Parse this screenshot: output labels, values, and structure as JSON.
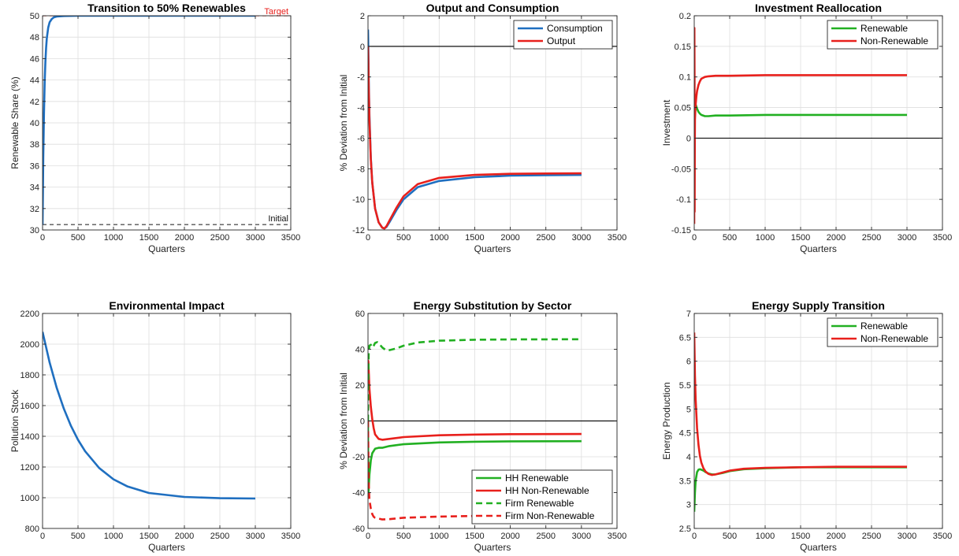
{
  "chart_data": [
    {
      "type": "line",
      "title": "Transition to 50% Renewables",
      "xlabel": "Quarters",
      "ylabel": "Renewable Share (%)",
      "xlim": [
        0,
        3500
      ],
      "ylim": [
        30,
        50
      ],
      "xticks": [
        0,
        500,
        1000,
        1500,
        2000,
        2500,
        3000,
        3500
      ],
      "yticks": [
        30,
        32,
        34,
        36,
        38,
        40,
        42,
        44,
        46,
        48,
        50
      ],
      "grid": true,
      "legend": "none",
      "series": [
        {
          "color": "#1f6fc0",
          "width": 2.6,
          "dash": "",
          "x": [
            0,
            5,
            10,
            15,
            20,
            30,
            40,
            50,
            60,
            80,
            100,
            130,
            160,
            200,
            300,
            500,
            1000,
            2000,
            3000
          ],
          "y": [
            30.5,
            33.8,
            36.8,
            39.0,
            40.9,
            43.8,
            45.7,
            47.0,
            47.9,
            48.9,
            49.4,
            49.7,
            49.85,
            49.93,
            49.98,
            50.0,
            50.0,
            50.0,
            50.0
          ]
        }
      ],
      "reference_lines": [
        {
          "label": "Target",
          "y": 50,
          "color": "#e8201c",
          "dash": "5,4"
        },
        {
          "label": "Initial",
          "y": 30.5,
          "color": "#555555",
          "dash": "5,4"
        }
      ]
    },
    {
      "type": "line",
      "title": "Output and Consumption",
      "xlabel": "Quarters",
      "ylabel": "% Deviation from Initial",
      "xlim": [
        0,
        3500
      ],
      "ylim": [
        -12,
        2
      ],
      "xticks": [
        0,
        500,
        1000,
        1500,
        2000,
        2500,
        3000,
        3500
      ],
      "yticks": [
        -12,
        -10,
        -8,
        -6,
        -4,
        -2,
        0,
        2
      ],
      "grid": true,
      "legend": "top-right",
      "zero_line": true,
      "series": [
        {
          "name": "Consumption",
          "color": "#1f6fc0",
          "width": 2.6,
          "dash": "",
          "x": [
            0,
            2,
            5,
            10,
            20,
            40,
            60,
            100,
            150,
            200,
            230,
            260,
            300,
            400,
            500,
            700,
            1000,
            1500,
            2000,
            2500,
            3000
          ],
          "y": [
            1.1,
            0.6,
            -0.5,
            -2.2,
            -4.5,
            -7.3,
            -8.9,
            -10.6,
            -11.5,
            -11.85,
            -11.9,
            -11.8,
            -11.5,
            -10.7,
            -10.0,
            -9.2,
            -8.8,
            -8.55,
            -8.45,
            -8.42,
            -8.4
          ]
        },
        {
          "name": "Output",
          "color": "#e8201c",
          "width": 2.6,
          "dash": "",
          "x": [
            0,
            5,
            10,
            20,
            40,
            60,
            100,
            150,
            200,
            230,
            260,
            300,
            400,
            500,
            700,
            1000,
            1500,
            2000,
            2500,
            3000
          ],
          "y": [
            0,
            -1.2,
            -2.6,
            -4.8,
            -7.4,
            -8.9,
            -10.6,
            -11.5,
            -11.85,
            -11.9,
            -11.75,
            -11.4,
            -10.55,
            -9.8,
            -9.0,
            -8.6,
            -8.4,
            -8.33,
            -8.31,
            -8.3
          ]
        }
      ]
    },
    {
      "type": "line",
      "title": "Investment Reallocation",
      "xlabel": "Quarters",
      "ylabel": "Investment",
      "xlim": [
        0,
        3500
      ],
      "ylim": [
        -0.15,
        0.2
      ],
      "xticks": [
        0,
        500,
        1000,
        1500,
        2000,
        2500,
        3000,
        3500
      ],
      "yticks": [
        -0.15,
        -0.1,
        -0.05,
        0,
        0.05,
        0.1,
        0.15,
        0.2
      ],
      "grid": true,
      "legend": "top-right",
      "zero_line": true,
      "series": [
        {
          "name": "Renewable",
          "color": "#22b022",
          "width": 2.6,
          "dash": "",
          "x": [
            0,
            2,
            5,
            10,
            20,
            40,
            60,
            80,
            100,
            150,
            200,
            300,
            500,
            1000,
            2000,
            3000
          ],
          "y": [
            0.0,
            0.03,
            0.06,
            0.06,
            0.055,
            0.048,
            0.043,
            0.04,
            0.038,
            0.036,
            0.036,
            0.037,
            0.037,
            0.038,
            0.038,
            0.038
          ]
        },
        {
          "name": "Non-Renewable",
          "color": "#e8201c",
          "width": 2.6,
          "dash": "",
          "x": [
            0,
            2,
            4,
            6,
            8,
            10,
            15,
            20,
            30,
            40,
            60,
            80,
            100,
            150,
            200,
            300,
            500,
            1000,
            2000,
            3000
          ],
          "y": [
            -0.14,
            0.18,
            0.1,
            -0.12,
            -0.02,
            0.03,
            0.045,
            0.055,
            0.068,
            0.077,
            0.087,
            0.093,
            0.097,
            0.1,
            0.101,
            0.102,
            0.102,
            0.103,
            0.103,
            0.103
          ]
        }
      ]
    },
    {
      "type": "line",
      "title": "Environmental Impact",
      "xlabel": "Quarters",
      "ylabel": "Pollution Stock",
      "xlim": [
        0,
        3500
      ],
      "ylim": [
        800,
        2200
      ],
      "xticks": [
        0,
        500,
        1000,
        1500,
        2000,
        2500,
        3000,
        3500
      ],
      "yticks": [
        800,
        1000,
        1200,
        1400,
        1600,
        1800,
        2000,
        2200
      ],
      "grid": true,
      "legend": "none",
      "series": [
        {
          "color": "#1f6fc0",
          "width": 2.6,
          "dash": "",
          "x": [
            0,
            100,
            200,
            300,
            400,
            500,
            600,
            800,
            1000,
            1200,
            1500,
            2000,
            2500,
            3000
          ],
          "y": [
            2080,
            1880,
            1715,
            1580,
            1468,
            1377,
            1303,
            1193,
            1120,
            1073,
            1031,
            1005,
            997,
            995
          ]
        }
      ]
    },
    {
      "type": "line",
      "title": "Energy Substitution by Sector",
      "xlabel": "Quarters",
      "ylabel": "% Deviation from Initial",
      "xlim": [
        0,
        3500
      ],
      "ylim": [
        -60,
        60
      ],
      "xticks": [
        0,
        500,
        1000,
        1500,
        2000,
        2500,
        3000,
        3500
      ],
      "yticks": [
        -60,
        -40,
        -20,
        0,
        20,
        40,
        60
      ],
      "grid": true,
      "legend": "bottom-right",
      "zero_line": true,
      "series": [
        {
          "name": "HH Renewable",
          "color": "#22b022",
          "width": 2.6,
          "dash": "",
          "x": [
            0,
            3,
            6,
            10,
            20,
            40,
            60,
            100,
            150,
            200,
            300,
            500,
            1000,
            1500,
            2000,
            3000
          ],
          "y": [
            0,
            -35,
            -42,
            -38,
            -30,
            -22,
            -18,
            -15.5,
            -15,
            -15,
            -14,
            -13,
            -12,
            -11.6,
            -11.4,
            -11.3
          ]
        },
        {
          "name": "HH Non-Renewable",
          "color": "#e8201c",
          "width": 2.6,
          "dash": "",
          "x": [
            0,
            5,
            10,
            20,
            40,
            60,
            80,
            100,
            150,
            200,
            300,
            500,
            1000,
            1500,
            2000,
            3000
          ],
          "y": [
            34,
            33,
            28,
            18,
            8,
            1,
            -4,
            -7.5,
            -10,
            -10.5,
            -10,
            -9,
            -8,
            -7.6,
            -7.4,
            -7.3
          ]
        },
        {
          "name": "Firm Renewable",
          "color": "#22b022",
          "width": 2.6,
          "dash": "8,5",
          "x": [
            0,
            5,
            10,
            20,
            40,
            60,
            80,
            100,
            130,
            160,
            200,
            250,
            300,
            400,
            500,
            700,
            1000,
            1500,
            2000,
            3000
          ],
          "y": [
            0,
            25,
            38,
            42,
            42.5,
            41,
            42,
            43.5,
            44,
            43,
            41,
            39.5,
            39.5,
            40.5,
            42,
            43.8,
            44.8,
            45.3,
            45.5,
            45.6
          ]
        },
        {
          "name": "Firm Non-Renewable",
          "color": "#e8201c",
          "width": 2.6,
          "dash": "8,5",
          "x": [
            0,
            5,
            10,
            20,
            40,
            60,
            80,
            100,
            150,
            200,
            300,
            400,
            500,
            1000,
            1500,
            2000,
            3000
          ],
          "y": [
            0,
            -20,
            -35,
            -44,
            -49,
            -52,
            -53.5,
            -54,
            -54.5,
            -55,
            -54.8,
            -54.4,
            -54,
            -53.4,
            -53,
            -52.7,
            -52.5
          ]
        }
      ]
    },
    {
      "type": "line",
      "title": "Energy Supply Transition",
      "xlabel": "Quarters",
      "ylabel": "Energy Production",
      "xlim": [
        0,
        3500
      ],
      "ylim": [
        2.5,
        7
      ],
      "xticks": [
        0,
        500,
        1000,
        1500,
        2000,
        2500,
        3000,
        3500
      ],
      "yticks": [
        2.5,
        3,
        3.5,
        4,
        4.5,
        5,
        5.5,
        6,
        6.5,
        7
      ],
      "grid": true,
      "legend": "top-right",
      "series": [
        {
          "name": "Renewable",
          "color": "#22b022",
          "width": 2.6,
          "dash": "",
          "x": [
            0,
            10,
            20,
            40,
            60,
            80,
            100,
            130,
            160,
            200,
            250,
            300,
            400,
            500,
            700,
            1000,
            1500,
            2000,
            3000
          ],
          "y": [
            2.85,
            3.25,
            3.5,
            3.68,
            3.73,
            3.74,
            3.73,
            3.71,
            3.68,
            3.65,
            3.63,
            3.63,
            3.66,
            3.7,
            3.74,
            3.76,
            3.78,
            3.78,
            3.78
          ]
        },
        {
          "name": "Non-Renewable",
          "color": "#e8201c",
          "width": 2.6,
          "dash": "",
          "x": [
            0,
            5,
            10,
            20,
            40,
            60,
            80,
            100,
            130,
            160,
            200,
            250,
            300,
            400,
            500,
            700,
            1000,
            1500,
            2000,
            3000
          ],
          "y": [
            6.6,
            6.1,
            5.7,
            5.2,
            4.6,
            4.25,
            4.02,
            3.88,
            3.76,
            3.69,
            3.64,
            3.62,
            3.63,
            3.67,
            3.71,
            3.75,
            3.77,
            3.78,
            3.79,
            3.79
          ]
        }
      ]
    }
  ]
}
